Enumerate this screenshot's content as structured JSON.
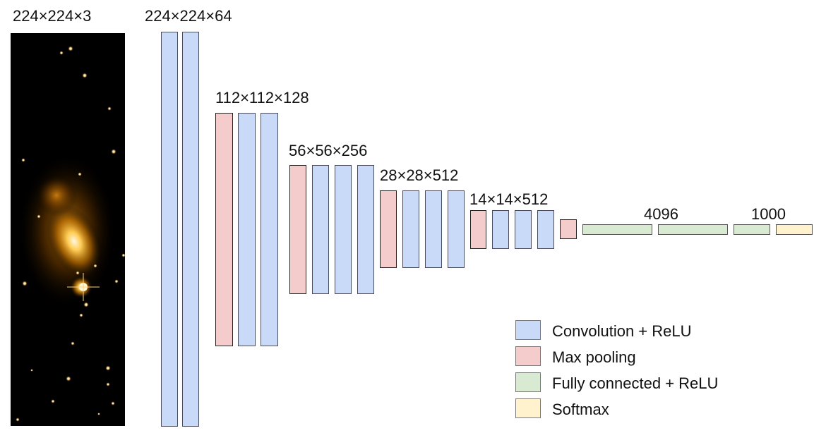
{
  "labels": {
    "input": "224×224×3",
    "stage1": "224×224×64",
    "stage2": "112×112×128",
    "stage3": "56×56×256",
    "stage4": "28×28×512",
    "stage5": "14×14×512",
    "fc": "4096",
    "out": "1000"
  },
  "legend": [
    {
      "label": "Convolution + ReLU",
      "color": "#c9daf8"
    },
    {
      "label": "Max pooling",
      "color": "#f4cccc"
    },
    {
      "label": "Fully connected + ReLU",
      "color": "#d9ead3"
    },
    {
      "label": "Softmax",
      "color": "#fff2cc"
    }
  ],
  "colors": {
    "conv": "#c9daf8",
    "pool": "#f4cccc",
    "fc": "#d9ead3",
    "softmax": "#fff2cc"
  },
  "input_image": "galaxy-image"
}
